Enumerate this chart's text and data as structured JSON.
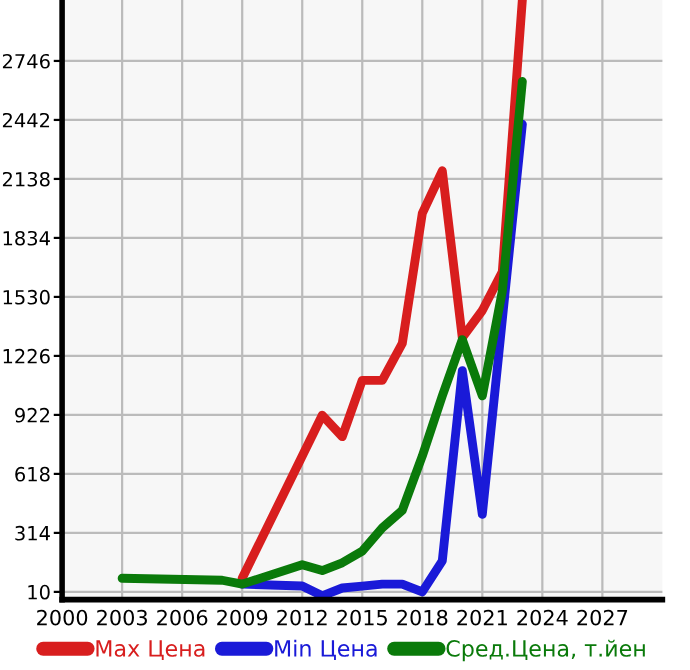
{
  "chart_data": {
    "type": "line",
    "xlim": [
      2000,
      2030
    ],
    "xticks": [
      2000,
      2003,
      2006,
      2009,
      2012,
      2015,
      2018,
      2021,
      2024,
      2027
    ],
    "ylim": [
      -30,
      3060
    ],
    "yticks": [
      10,
      314,
      618,
      922,
      1226,
      1530,
      1834,
      2138,
      2442,
      2746
    ],
    "grid": true,
    "legend": "bottom",
    "marker": "none",
    "line_style": "solid",
    "series": [
      {
        "name": "Max Цена",
        "color": "#d81e1e",
        "x": [
          2009,
          2013,
          2014,
          2015,
          2016,
          2017,
          2018,
          2019,
          2020,
          2021,
          2022,
          2023
        ],
        "values": [
          80,
          920,
          810,
          1100,
          1100,
          1290,
          1960,
          2180,
          1320,
          1460,
          1660,
          3060
        ]
      },
      {
        "name": "Min Цена",
        "color": "#1a1ad8",
        "x": [
          2009,
          2012,
          2013,
          2014,
          2015,
          2016,
          2017,
          2018,
          2019,
          2020,
          2021,
          2023
        ],
        "values": [
          50,
          40,
          -10,
          30,
          40,
          50,
          50,
          10,
          170,
          1150,
          410,
          2420
        ]
      },
      {
        "name": "Сред.Цена, т.йен",
        "color": "#0a7a0a",
        "x": [
          2003,
          2008,
          2009,
          2012,
          2013,
          2014,
          2015,
          2016,
          2017,
          2018,
          2019,
          2020,
          2021,
          2022,
          2023
        ],
        "values": [
          80,
          70,
          50,
          150,
          120,
          160,
          220,
          340,
          430,
          710,
          1020,
          1310,
          1020,
          1560,
          2640
        ]
      }
    ]
  }
}
